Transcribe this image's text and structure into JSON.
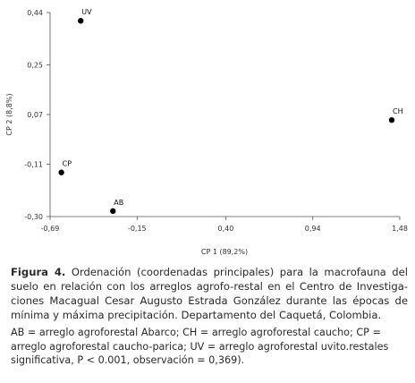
{
  "chart_data": {
    "type": "scatter",
    "xlabel": "CP 1 (89,2%)",
    "ylabel": "CP 2 (8,8%)",
    "xlim": [
      -0.69,
      1.48
    ],
    "ylim": [
      -0.3,
      0.44
    ],
    "xticks": [
      "-0,69",
      "-0,15",
      "0,40",
      "0,94",
      "1,48"
    ],
    "xtick_values": [
      -0.69,
      -0.15,
      0.4,
      0.94,
      1.48
    ],
    "yticks": [
      "0,44",
      "0,25",
      "0,07",
      "-0,11",
      "-0,30"
    ],
    "ytick_values": [
      0.44,
      0.25,
      0.07,
      -0.11,
      -0.3
    ],
    "grid": false,
    "points": [
      {
        "label": "UV",
        "x": -0.5,
        "y": 0.41
      },
      {
        "label": "CH",
        "x": 1.43,
        "y": 0.05
      },
      {
        "label": "CP",
        "x": -0.62,
        "y": -0.14
      },
      {
        "label": "AB",
        "x": -0.3,
        "y": -0.28
      }
    ]
  },
  "caption": {
    "label": "Figura 4.",
    "text": "Ordenación (coordenadas principales) para la macrofauna del suelo en relación con los arreglos agrofo-restal en el Centro de Investiga-ciones Macagual Cesar Augusto Estrada González durante las épocas de mínima y máxima precipitación. Departamento del Caquetá, Colombia.",
    "abbreviations": "AB = arreglo agroforestal Abarco; CH = arreglo agroforestal caucho; CP = arreglo agroforestal caucho-parica; UV = arreglo agroforestal uvito.restales significativa, P < 0.001, observación = 0,369)."
  }
}
